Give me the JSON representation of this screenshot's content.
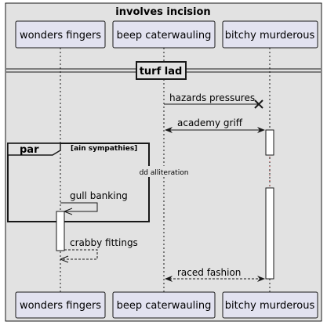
{
  "diagram": {
    "title": "involves incision",
    "participants": [
      "wonders fingers",
      "beep caterwauling",
      "bitchy murderous"
    ],
    "divider": "turf lad",
    "messages": [
      {
        "from": "beep caterwauling",
        "to": "bitchy murderous",
        "label": "hazards pressures",
        "style": "solid",
        "head": "cross"
      },
      {
        "from": "beep caterwauling",
        "to": "bitchy murderous",
        "label": "academy griff",
        "style": "solid",
        "head": "both"
      },
      {
        "from": "wonders fingers",
        "to": "wonders fingers",
        "label": "gull banking",
        "style": "solid",
        "head": "self"
      },
      {
        "from": "wonders fingers",
        "to": "wonders fingers",
        "label": "crabby fittings",
        "style": "dashed",
        "head": "self"
      },
      {
        "from": "beep caterwauling",
        "to": "bitchy murderous",
        "label": "raced fashion",
        "style": "dashed",
        "head": "both"
      }
    ],
    "fragment": {
      "operator": "par",
      "guard": "[ain sympathies]"
    },
    "delay_note": "dd alliteration",
    "colors": {
      "background": "#e2e2e2",
      "participant_fill": "#e2e2f0",
      "participant_border": "#181818",
      "line": "#181818"
    }
  }
}
